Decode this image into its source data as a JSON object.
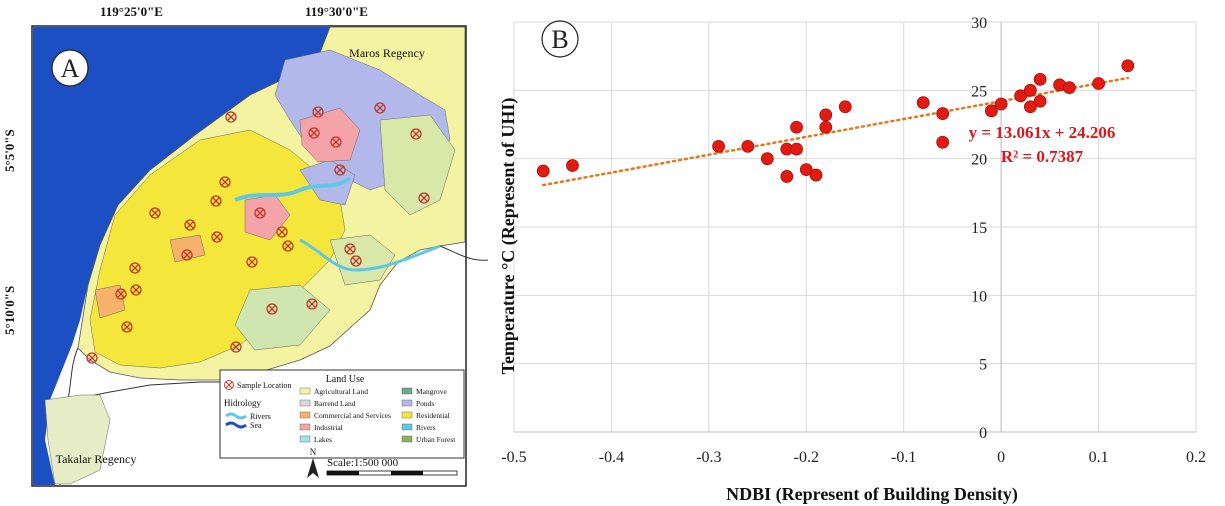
{
  "map": {
    "panel_letter": "A",
    "coords_top": [
      "119°25'0\"E",
      "119°30'0\"E"
    ],
    "coords_left": [
      "5°5'0\"S",
      "5°10'0\"S"
    ],
    "region_labels": {
      "north": "Maros Regency",
      "south": "Takalar Regency"
    },
    "legend": {
      "sample_label": "Sample Location",
      "hidrology_title": "Hidrology",
      "hidrology_items": [
        {
          "label": "Rivers",
          "color": "#5fc8e8"
        },
        {
          "label": "Sea",
          "color": "#1c4fc4"
        }
      ],
      "land_use_title": "Land Use",
      "land_use_items": [
        {
          "label": "Agricultural Land",
          "color": "#f4f3a2"
        },
        {
          "label": "Mangrove",
          "color": "#6aab8e"
        },
        {
          "label": "Barrend Land",
          "color": "#d9d9d9"
        },
        {
          "label": "Ponds",
          "color": "#b3b8ea"
        },
        {
          "label": "Commercial and Services",
          "color": "#f6b26b"
        },
        {
          "label": "Residential",
          "color": "#f5e63b"
        },
        {
          "label": "Industrial",
          "color": "#f4a3a8"
        },
        {
          "label": "Rivers",
          "color": "#5fc8e8"
        },
        {
          "label": "Lakes",
          "color": "#9fe3e8"
        },
        {
          "label": "Urban Forest",
          "color": "#8db35a"
        }
      ]
    },
    "north_arrow": "N",
    "scale": "Scale:1:500 000"
  },
  "chart_data": {
    "type": "scatter",
    "panel_letter": "B",
    "xlabel": "NDBI (Represent of Building Density)",
    "ylabel": "Temperature °C  (Represent of UHI)",
    "xlim": [
      -0.5,
      0.2
    ],
    "ylim": [
      0,
      30
    ],
    "xticks": [
      -0.5,
      -0.4,
      -0.3,
      -0.2,
      -0.1,
      0,
      0.1,
      0.2
    ],
    "xtick_labels": [
      "-0.5",
      "-0.4",
      "-0.3",
      "-0.2",
      "-0.1",
      "0",
      "0.1",
      "0.2"
    ],
    "yticks": [
      0,
      5,
      10,
      15,
      20,
      25,
      30
    ],
    "ytick_labels": [
      "0",
      "5",
      "10",
      "15",
      "20",
      "25",
      "30"
    ],
    "grid": true,
    "marker_color": "#e31a0f",
    "points": [
      {
        "x": -0.47,
        "y": 19.1
      },
      {
        "x": -0.44,
        "y": 19.5
      },
      {
        "x": -0.29,
        "y": 20.9
      },
      {
        "x": -0.26,
        "y": 20.9
      },
      {
        "x": -0.24,
        "y": 20.0
      },
      {
        "x": -0.22,
        "y": 18.7
      },
      {
        "x": -0.22,
        "y": 20.7
      },
      {
        "x": -0.21,
        "y": 20.7
      },
      {
        "x": -0.21,
        "y": 22.3
      },
      {
        "x": -0.2,
        "y": 19.2
      },
      {
        "x": -0.19,
        "y": 18.8
      },
      {
        "x": -0.18,
        "y": 22.3
      },
      {
        "x": -0.18,
        "y": 23.2
      },
      {
        "x": -0.16,
        "y": 23.8
      },
      {
        "x": -0.08,
        "y": 24.1
      },
      {
        "x": -0.06,
        "y": 23.3
      },
      {
        "x": -0.06,
        "y": 21.2
      },
      {
        "x": -0.01,
        "y": 23.5
      },
      {
        "x": 0.0,
        "y": 24.0
      },
      {
        "x": 0.02,
        "y": 24.6
      },
      {
        "x": 0.03,
        "y": 23.8
      },
      {
        "x": 0.03,
        "y": 25.0
      },
      {
        "x": 0.04,
        "y": 25.8
      },
      {
        "x": 0.04,
        "y": 24.2
      },
      {
        "x": 0.06,
        "y": 25.4
      },
      {
        "x": 0.07,
        "y": 25.2
      },
      {
        "x": 0.1,
        "y": 25.5
      },
      {
        "x": 0.13,
        "y": 26.8
      }
    ],
    "trendline": {
      "slope": 13.061,
      "intercept": 24.206,
      "x_range": [
        -0.47,
        0.13
      ],
      "color": "#e07a1f",
      "equation": "y = 13.061x + 24.206",
      "r2": "R² = 0.7387",
      "label_color": "#d7191c"
    }
  }
}
